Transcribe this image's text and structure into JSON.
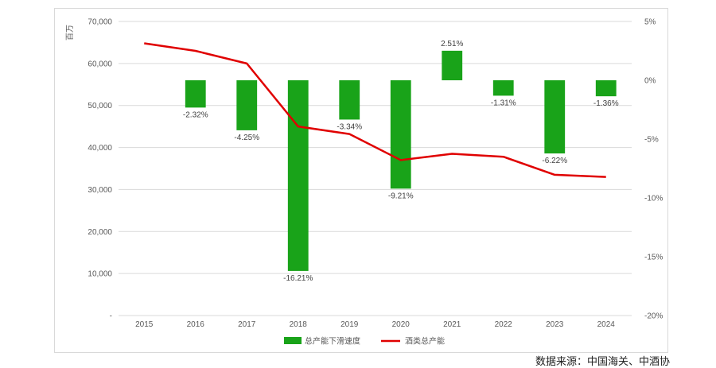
{
  "chart_data": {
    "type": "bar+line",
    "categories": [
      "2015",
      "2016",
      "2017",
      "2018",
      "2019",
      "2020",
      "2021",
      "2022",
      "2023",
      "2024"
    ],
    "series": [
      {
        "name": "总产能下滑速度",
        "type": "bar",
        "axis": "right",
        "values": [
          null,
          -2.32,
          -4.25,
          -16.21,
          -3.34,
          -9.21,
          2.51,
          -1.31,
          -6.22,
          -1.36
        ],
        "labels": [
          "",
          "-2.32%",
          "-4.25%",
          "-16.21%",
          "-3.34%",
          "-9.21%",
          "2.51%",
          "-1.31%",
          "-6.22%",
          "-1.36%"
        ],
        "color": "#19a319"
      },
      {
        "name": "酒类总产能",
        "type": "line",
        "axis": "left",
        "values": [
          64800,
          63000,
          60000,
          45000,
          43200,
          37000,
          38500,
          37800,
          33500,
          33000
        ],
        "color": "#e00000"
      }
    ],
    "y_left": {
      "label": "百万",
      "min": 0,
      "max": 70000,
      "ticks": [
        "-",
        "10,000",
        "20,000",
        "30,000",
        "40,000",
        "50,000",
        "60,000",
        "70,000"
      ]
    },
    "y_right": {
      "min": -20,
      "max": 5,
      "ticks": [
        "-20%",
        "-15%",
        "-10%",
        "-5%",
        "0%",
        "5%"
      ]
    },
    "grid": true,
    "legend": "bottom"
  },
  "source_note": "数据来源：中国海关、中酒协"
}
